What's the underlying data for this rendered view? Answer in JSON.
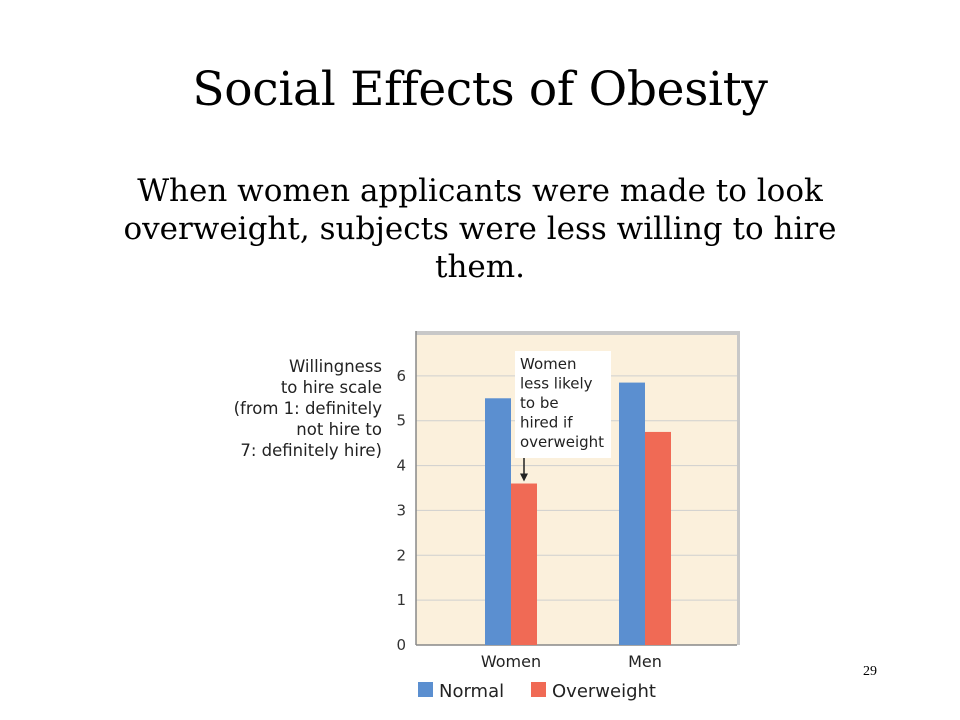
{
  "slide": {
    "title": "Social Effects of Obesity",
    "body_lines": [
      "When women applicants were made to look",
      "overweight, subjects were less willing to hire",
      "them."
    ],
    "page_number": "29"
  },
  "chart_data": {
    "type": "bar",
    "categories": [
      "Women",
      "Men"
    ],
    "series": [
      {
        "name": "Normal",
        "values": [
          5.5,
          5.85
        ]
      },
      {
        "name": "Overweight",
        "values": [
          3.6,
          4.75
        ]
      }
    ],
    "ylabel_lines": [
      "Willingness",
      "to hire scale",
      "(from 1: definitely",
      "not hire to",
      "7: definitely hire)"
    ],
    "ylim": [
      0,
      7
    ],
    "yticks": [
      "0",
      "1",
      "2",
      "3",
      "4",
      "5",
      "6"
    ],
    "grid": true,
    "legend": "bottom",
    "annotation": {
      "lines": [
        "Women",
        "less likely",
        "to be",
        "hired if",
        "overweight"
      ],
      "target_category": "Women",
      "target_series": "Overweight"
    },
    "colors": {
      "Normal": "#5b8fd0",
      "Overweight": "#f06a55",
      "plot_background": "#fbf0dc",
      "grid": "#cfcfcf",
      "frame": "#c8c8c8"
    }
  }
}
